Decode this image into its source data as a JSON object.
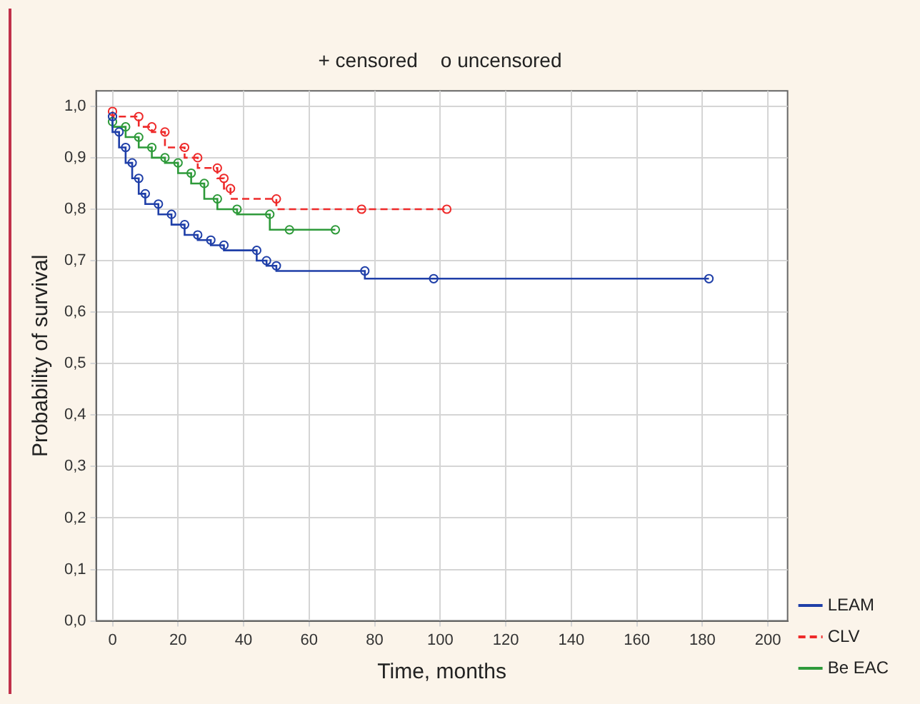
{
  "chart_data": {
    "type": "step",
    "xlabel": "Time, months",
    "ylabel": "Probability of survival",
    "annotations": [
      "+ censored",
      "o uncensored"
    ],
    "xlim": [
      -5,
      206
    ],
    "ylim": [
      0,
      1.03
    ],
    "xticks": [
      0,
      20,
      40,
      60,
      80,
      100,
      120,
      140,
      160,
      180,
      200
    ],
    "yticks": [
      {
        "value": 0,
        "label": "0,0"
      },
      {
        "value": 0.1,
        "label": "0,1"
      },
      {
        "value": 0.2,
        "label": "0,2"
      },
      {
        "value": 0.3,
        "label": "0,3"
      },
      {
        "value": 0.4,
        "label": "0,4"
      },
      {
        "value": 0.5,
        "label": "0,5"
      },
      {
        "value": 0.6,
        "label": "0,6"
      },
      {
        "value": 0.7,
        "label": "0,7"
      },
      {
        "value": 0.8,
        "label": "0,8"
      },
      {
        "value": 0.9,
        "label": "0,9"
      },
      {
        "value": 1,
        "label": "1,0"
      }
    ],
    "grid": true,
    "legend": "bottom right",
    "marker": "circle",
    "series": [
      {
        "name": "LEAM",
        "color": "#1f3fa8",
        "line_style": "solid",
        "x": [
          0,
          2,
          4,
          6,
          8,
          10,
          14,
          18,
          22,
          26,
          30,
          34,
          44,
          47,
          50,
          77,
          98,
          182
        ],
        "values": [
          0.98,
          0.95,
          0.92,
          0.89,
          0.86,
          0.83,
          0.81,
          0.79,
          0.77,
          0.75,
          0.74,
          0.73,
          0.72,
          0.7,
          0.69,
          0.68,
          0.665,
          0.665
        ]
      },
      {
        "name": "CLV",
        "color": "#ee2a2a",
        "line_style": "dashed",
        "x": [
          0,
          8,
          12,
          16,
          22,
          26,
          32,
          34,
          36,
          50,
          76,
          102
        ],
        "values": [
          0.99,
          0.98,
          0.96,
          0.95,
          0.92,
          0.9,
          0.88,
          0.86,
          0.84,
          0.82,
          0.8,
          0.8
        ]
      },
      {
        "name": "Be EAC",
        "color": "#2e9a3a",
        "line_style": "solid",
        "x": [
          0,
          4,
          8,
          12,
          16,
          20,
          24,
          28,
          32,
          38,
          48,
          54,
          68
        ],
        "values": [
          0.97,
          0.96,
          0.94,
          0.92,
          0.9,
          0.89,
          0.87,
          0.85,
          0.82,
          0.8,
          0.79,
          0.76,
          0.76
        ]
      }
    ]
  }
}
